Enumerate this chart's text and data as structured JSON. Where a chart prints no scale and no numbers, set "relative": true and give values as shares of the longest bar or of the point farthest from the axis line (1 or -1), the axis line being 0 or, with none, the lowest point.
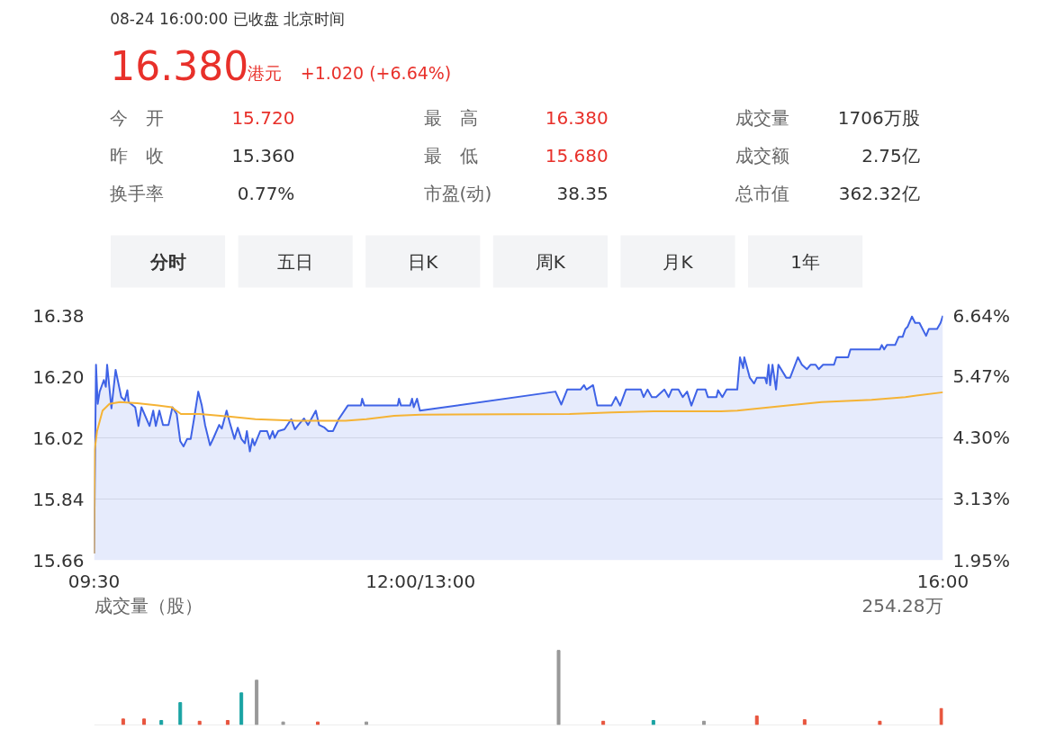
{
  "chart_data": [
    {
      "type": "other",
      "title": "08-24 16:00:00  已收盘  北京时间",
      "annotations": [
        "16.380",
        "港元",
        "+1.020 (+6.64%)",
        "今　开",
        "15.720",
        "最　高",
        "16.380",
        "成交量",
        "1706万股",
        "昨　收",
        "15.360",
        "最　低",
        "15.680",
        "成交额",
        "2.75亿",
        "换手率",
        "0.77%",
        "市盈(动)",
        "38.35",
        "总市值",
        "362.32亿",
        "分时",
        "五日",
        "日K",
        "周K",
        "月K",
        "1年"
      ]
    },
    {
      "type": "area",
      "xlim": [
        9.5,
        16
      ],
      "xticks": [
        {
          "value": 9.5,
          "label": "09:30"
        },
        {
          "value": 12,
          "label": "12:00/13:00"
        },
        {
          "value": 16,
          "label": "16:00"
        }
      ],
      "ylim": [
        15.66,
        16.38
      ],
      "yticks": [
        {
          "value": 15.66,
          "label": "15.66"
        },
        {
          "value": 15.84,
          "label": "15.84"
        },
        {
          "value": 16.02,
          "label": "16.02"
        },
        {
          "value": 16.2,
          "label": "16.20"
        },
        {
          "value": 16.38,
          "label": "16.38"
        }
      ],
      "y2lim": [
        1.95,
        6.64
      ],
      "y2ticks": [
        {
          "value": 1.95,
          "label": "1.95%"
        },
        {
          "value": 3.13,
          "label": "3.13%"
        },
        {
          "value": 4.3,
          "label": "4.30%"
        },
        {
          "value": 5.47,
          "label": "5.47%"
        },
        {
          "value": 6.64,
          "label": "6.64%"
        }
      ],
      "grid": "y",
      "series": [
        {
          "type": "area",
          "color": "#3f63e6",
          "x": [
            9.5,
            9.515,
            9.528,
            9.543,
            9.575,
            9.59,
            9.6,
            9.633,
            9.665,
            9.708,
            9.735,
            9.755,
            9.765,
            9.815,
            9.84,
            9.863,
            9.925,
            9.953,
            9.973,
            10.0,
            10.028,
            10.07,
            10.1,
            10.133,
            10.16,
            10.185,
            10.213,
            10.24,
            10.265,
            10.298,
            10.325,
            10.35,
            10.388,
            10.415,
            10.458,
            10.478,
            10.515,
            10.538,
            10.575,
            10.6,
            10.628,
            10.655,
            10.67,
            10.693,
            10.713,
            10.728,
            10.773,
            10.825,
            10.845,
            10.868,
            10.883,
            10.91,
            10.958,
            11.01,
            11.038,
            11.065,
            11.108,
            11.138,
            11.198,
            11.223,
            11.265,
            11.293,
            11.33,
            11.373,
            11.443,
            11.543,
            11.553,
            11.57,
            11.825,
            11.835,
            11.85,
            11.92,
            11.935,
            11.948,
            11.973,
            11.995,
            13.033,
            13.078,
            13.123,
            13.225,
            13.252,
            13.27,
            13.321,
            13.354,
            13.462,
            13.495,
            13.528,
            13.573,
            13.687,
            13.708,
            13.738,
            13.771,
            13.804,
            13.867,
            13.9,
            13.924,
            13.975,
            14.008,
            14.041,
            14.074,
            14.119,
            14.182,
            14.2,
            14.266,
            14.278,
            14.311,
            14.344,
            14.425,
            14.446,
            14.47,
            14.479,
            14.521,
            14.554,
            14.575,
            14.638,
            14.65,
            14.665,
            14.677,
            14.695,
            14.722,
            14.74,
            14.8,
            14.83,
            14.89,
            14.92,
            14.959,
            14.986,
            15.025,
            15.049,
            15.082,
            15.166,
            15.184,
            15.274,
            15.292,
            15.517,
            15.532,
            15.55,
            15.571,
            15.634,
            15.661,
            15.691,
            15.712,
            15.73,
            15.763,
            15.787,
            15.82,
            15.871,
            15.892,
            15.955,
            15.982,
            16.0
          ],
          "values": [
            15.68,
            16.235,
            16.12,
            16.156,
            16.19,
            16.17,
            16.235,
            16.107,
            16.22,
            16.14,
            16.13,
            16.16,
            16.125,
            16.11,
            16.055,
            16.11,
            16.055,
            16.1,
            16.055,
            16.1,
            16.058,
            16.058,
            16.11,
            16.09,
            16.01,
            15.995,
            16.017,
            16.017,
            16.075,
            16.156,
            16.115,
            16.058,
            15.998,
            16.02,
            16.058,
            16.047,
            16.1,
            16.066,
            16.017,
            16.05,
            16.017,
            16.004,
            16.04,
            15.98,
            16.017,
            15.998,
            16.04,
            16.04,
            16.017,
            16.04,
            16.02,
            16.04,
            16.045,
            16.075,
            16.045,
            16.058,
            16.077,
            16.058,
            16.1,
            16.058,
            16.05,
            16.04,
            16.04,
            16.075,
            16.115,
            16.115,
            16.135,
            16.115,
            16.115,
            16.135,
            16.115,
            16.115,
            16.135,
            16.11,
            16.135,
            16.1,
            16.156,
            16.118,
            16.162,
            16.162,
            16.175,
            16.162,
            16.175,
            16.115,
            16.115,
            16.14,
            16.115,
            16.162,
            16.162,
            16.14,
            16.162,
            16.14,
            16.14,
            16.162,
            16.14,
            16.162,
            16.162,
            16.14,
            16.156,
            16.115,
            16.162,
            16.162,
            16.14,
            16.14,
            16.16,
            16.14,
            16.162,
            16.162,
            16.257,
            16.225,
            16.257,
            16.197,
            16.18,
            16.197,
            16.197,
            16.18,
            16.235,
            16.175,
            16.235,
            16.162,
            16.235,
            16.197,
            16.197,
            16.257,
            16.235,
            16.222,
            16.235,
            16.235,
            16.222,
            16.235,
            16.235,
            16.257,
            16.257,
            16.28,
            16.28,
            16.293,
            16.28,
            16.293,
            16.293,
            16.317,
            16.317,
            16.34,
            16.347,
            16.377,
            16.358,
            16.358,
            16.32,
            16.34,
            16.34,
            16.358,
            16.38
          ]
        },
        {
          "type": "line",
          "color": "#f5b335",
          "x": [
            9.5,
            9.505,
            9.523,
            9.565,
            9.618,
            9.698,
            9.83,
            9.99,
            10.095,
            10.165,
            10.308,
            10.468,
            10.735,
            11.053,
            11.265,
            11.425,
            11.585,
            11.798,
            12.0,
            13.141,
            13.462,
            13.783,
            14.299,
            14.425,
            14.812,
            15.07,
            15.454,
            15.712,
            16.0
          ],
          "values": [
            15.68,
            15.985,
            16.04,
            16.1,
            16.12,
            16.125,
            16.122,
            16.115,
            16.11,
            16.09,
            16.09,
            16.085,
            16.075,
            16.07,
            16.07,
            16.07,
            16.075,
            16.085,
            16.088,
            16.09,
            16.095,
            16.098,
            16.098,
            16.1,
            16.115,
            16.125,
            16.132,
            16.14,
            16.154
          ]
        }
      ]
    },
    {
      "type": "bar",
      "relative": true,
      "ylabel": "成交量（股）",
      "annotations": [
        "254.28万"
      ],
      "xlim": [
        9.5,
        16
      ],
      "tick_labels": false,
      "x": [
        9.723,
        9.883,
        10.015,
        10.16,
        10.308,
        10.523,
        10.628,
        10.745,
        10.948,
        11.213,
        11.585,
        13.057,
        13.399,
        13.783,
        14.17,
        14.575,
        14.941,
        15.517,
        15.988
      ],
      "values": [
        0.08,
        0.08,
        0.06,
        0.3,
        0.05,
        0.06,
        0.43,
        0.6,
        0.04,
        0.04,
        0.04,
        1.0,
        0.05,
        0.06,
        0.05,
        0.12,
        0.07,
        0.05,
        0.22
      ],
      "colors": [
        "#e8553e",
        "#e8553e",
        "#1aa3a3",
        "#1aa3a3",
        "#e8553e",
        "#e8553e",
        "#1aa3a3",
        "#999999",
        "#999999",
        "#e8553e",
        "#999999",
        "#999999",
        "#e8553e",
        "#1aa3a3",
        "#999999",
        "#e8553e",
        "#e8553e",
        "#e8553e",
        "#e8553e"
      ]
    }
  ]
}
